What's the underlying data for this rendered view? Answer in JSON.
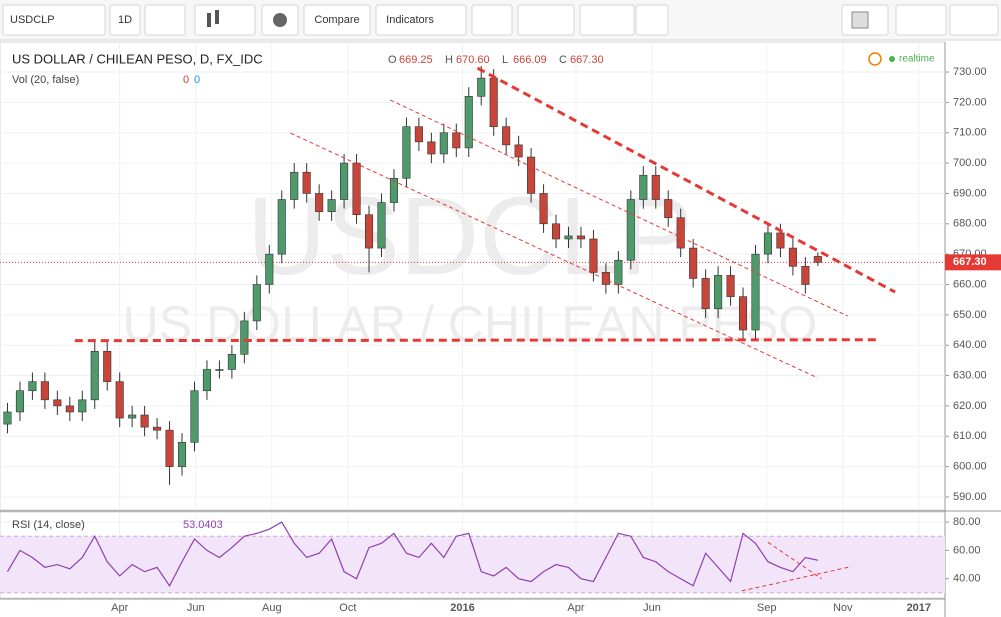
{
  "toolbar": {
    "symbol": "USDCLP",
    "interval": "1D",
    "compare": "Compare",
    "indicators": "Indicators"
  },
  "watermark": {
    "symbol": "USDCLP",
    "name": "US DOLLAR / CHILEAN PESO"
  },
  "chart_data": [
    {
      "type": "candlestick",
      "title": "US DOLLAR / CHILEAN PESO, D, FX_IDC",
      "ohlc_legend": [
        [
          "O",
          "669.25"
        ],
        [
          "H",
          "670.60"
        ],
        [
          "L",
          "666.09"
        ],
        [
          "C",
          "667.30"
        ]
      ],
      "volume_legend": [
        "Vol (20, false)",
        "0",
        "0"
      ],
      "status": "realtime",
      "x": [
        0,
        10,
        20,
        30,
        40,
        50,
        60,
        70,
        80,
        90,
        100,
        110,
        120,
        130,
        140,
        150,
        160,
        170,
        180,
        190,
        200,
        210,
        220,
        230,
        240,
        250,
        260,
        270,
        280,
        290,
        300,
        310,
        320,
        330,
        340,
        350,
        360,
        370,
        380,
        390,
        400,
        410,
        420,
        430,
        440,
        450,
        460,
        470,
        480,
        490,
        500,
        510,
        520,
        530,
        540,
        550,
        560,
        570,
        580,
        590,
        600,
        610,
        620,
        630,
        640,
        650
      ],
      "open": [
        614,
        618,
        625,
        628,
        622,
        620,
        618,
        622,
        638,
        628,
        616,
        617,
        613,
        612,
        600,
        608,
        625,
        632,
        632,
        637,
        648,
        660,
        670,
        688,
        697,
        690,
        684,
        688,
        700,
        683,
        672,
        687,
        695,
        712,
        707,
        703,
        710,
        705,
        722,
        728,
        712,
        706,
        702,
        690,
        680,
        675,
        676,
        675,
        664,
        660,
        668,
        688,
        696,
        688,
        682,
        672,
        662,
        652,
        663,
        656,
        645,
        670,
        677,
        672,
        666,
        669.25
      ],
      "high": [
        621,
        628,
        631,
        631,
        625,
        623,
        625,
        642,
        641,
        631,
        620,
        620,
        616,
        615,
        611,
        628,
        635,
        635,
        640,
        651,
        663,
        673,
        691,
        700,
        700,
        693,
        691,
        703,
        703,
        686,
        690,
        698,
        715,
        715,
        710,
        713,
        713,
        725,
        732,
        731,
        715,
        709,
        705,
        693,
        683,
        679,
        679,
        678,
        667,
        671,
        691,
        699,
        699,
        691,
        685,
        675,
        665,
        666,
        666,
        659,
        673,
        680,
        680,
        675,
        669,
        670.6
      ],
      "low": [
        611,
        615,
        622,
        619,
        617,
        615,
        615,
        619,
        625,
        613,
        613,
        610,
        609,
        594,
        597,
        605,
        622,
        629,
        629,
        634,
        645,
        657,
        667,
        685,
        687,
        681,
        681,
        685,
        680,
        664,
        669,
        684,
        692,
        704,
        700,
        700,
        702,
        702,
        719,
        709,
        703,
        699,
        687,
        677,
        672,
        672,
        672,
        661,
        657,
        657,
        665,
        685,
        685,
        679,
        669,
        659,
        649,
        649,
        653,
        642,
        642,
        667,
        669,
        663,
        657,
        666.09
      ],
      "close": [
        618,
        625,
        628,
        622,
        620,
        618,
        622,
        638,
        628,
        616,
        617,
        613,
        612,
        600,
        608,
        625,
        632,
        632,
        637,
        648,
        660,
        670,
        688,
        697,
        690,
        684,
        688,
        700,
        683,
        672,
        687,
        695,
        712,
        707,
        703,
        710,
        705,
        722,
        728,
        712,
        706,
        702,
        690,
        680,
        675,
        676,
        675,
        664,
        660,
        668,
        688,
        696,
        688,
        682,
        672,
        662,
        652,
        663,
        656,
        645,
        670,
        677,
        672,
        666,
        660,
        667.3
      ],
      "up_color": "#4f9a6a",
      "down_color": "#c8453a",
      "last": {
        "value": 667.3,
        "label": "667.30"
      },
      "last_color": "#e53935",
      "xlim": [
        -6,
        752
      ],
      "xticks": [
        {
          "value": 90,
          "label": "Apr"
        },
        {
          "value": 151,
          "label": "Jun"
        },
        {
          "value": 212,
          "label": "Aug"
        },
        {
          "value": 273,
          "label": "Oct"
        },
        {
          "value": 365,
          "label": "2016"
        },
        {
          "value": 456,
          "label": "Apr"
        },
        {
          "value": 517,
          "label": "Jun"
        },
        {
          "value": 609,
          "label": "Sep"
        },
        {
          "value": 670,
          "label": "Nov"
        },
        {
          "value": 731,
          "label": "2017"
        }
      ],
      "ylim": [
        585.7,
        739.9
      ],
      "yticks": [
        {
          "value": 590,
          "label": "590.00"
        },
        {
          "value": 600,
          "label": "600.00"
        },
        {
          "value": 610,
          "label": "610.00"
        },
        {
          "value": 620,
          "label": "620.00"
        },
        {
          "value": 630,
          "label": "630.00"
        },
        {
          "value": 640,
          "label": "640.00"
        },
        {
          "value": 650,
          "label": "650.00"
        },
        {
          "value": 660,
          "label": "660.00"
        },
        {
          "value": 670,
          "label": "670.00"
        },
        {
          "value": 680,
          "label": "680.00"
        },
        {
          "value": 690,
          "label": "690.00"
        },
        {
          "value": 700,
          "label": "700.00"
        },
        {
          "value": 710,
          "label": "710.00"
        },
        {
          "value": 720,
          "label": "720.00"
        },
        {
          "value": 730,
          "label": "730.00"
        }
      ],
      "grid": true,
      "trendlines": [
        {
          "x": [
            377,
            712
          ],
          "y": [
            731.3,
            657.5
          ],
          "color": "#e53935",
          "width": 3
        },
        {
          "x": [
            54,
            700
          ],
          "y": [
            641.5,
            641.8
          ],
          "color": "#e53935",
          "width": 3
        },
        {
          "x": [
            307,
            674
          ],
          "y": [
            720.8,
            649.6
          ],
          "color": "#e53935",
          "width": 1
        },
        {
          "x": [
            227,
            650
          ],
          "y": [
            709.9,
            629.2
          ],
          "color": "#e53935",
          "width": 1
        }
      ]
    },
    {
      "type": "line",
      "title": "RSI (14, close)",
      "last_label": "53.0403",
      "x": [
        0,
        10,
        20,
        30,
        40,
        50,
        60,
        70,
        80,
        90,
        100,
        110,
        120,
        130,
        140,
        150,
        160,
        170,
        180,
        190,
        200,
        210,
        220,
        230,
        240,
        250,
        260,
        270,
        280,
        290,
        300,
        310,
        320,
        330,
        340,
        350,
        360,
        370,
        380,
        390,
        400,
        410,
        420,
        430,
        440,
        450,
        460,
        470,
        480,
        490,
        500,
        510,
        520,
        530,
        540,
        550,
        560,
        570,
        580,
        590,
        600,
        610,
        620,
        630,
        640,
        650
      ],
      "values": [
        45,
        60,
        55,
        48,
        50,
        47,
        55,
        70,
        52,
        42,
        50,
        45,
        48,
        35,
        52,
        68,
        60,
        55,
        62,
        70,
        72,
        75,
        80,
        65,
        55,
        58,
        68,
        45,
        40,
        62,
        65,
        72,
        58,
        55,
        65,
        55,
        70,
        72,
        45,
        42,
        48,
        40,
        38,
        45,
        50,
        48,
        40,
        38,
        55,
        72,
        70,
        55,
        52,
        45,
        40,
        35,
        58,
        48,
        38,
        72,
        65,
        52,
        48,
        45,
        55,
        53.0403
      ],
      "color": "#8e3fb0",
      "band": [
        30,
        70
      ],
      "band_color": "#f3e5f9",
      "xlim": [
        -6,
        752
      ],
      "ylim": [
        26.4,
        87.1
      ],
      "yticks": [
        {
          "value": 40,
          "label": "40.00"
        },
        {
          "value": 60,
          "label": "60.00"
        },
        {
          "value": 80,
          "label": "80.00"
        }
      ],
      "trendlines": [
        {
          "x": [
            610,
            653
          ],
          "y": [
            65.7,
            40
          ],
          "color": "#e53935",
          "width": 1
        },
        {
          "x": [
            589,
            677
          ],
          "y": [
            31.4,
            48.6
          ],
          "color": "#e53935",
          "width": 1
        }
      ]
    }
  ]
}
